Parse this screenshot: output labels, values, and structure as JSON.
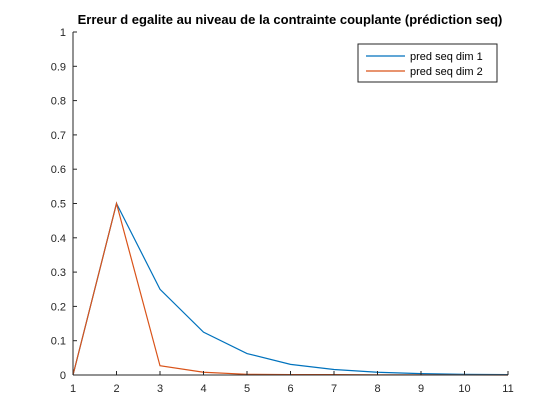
{
  "chart_data": {
    "type": "line",
    "title": "Erreur d egalite au niveau de la contrainte couplante (prédiction seq)",
    "xlabel": "",
    "ylabel": "",
    "xlim": [
      1,
      11
    ],
    "ylim": [
      0,
      1
    ],
    "grid": false,
    "legend_position": "top-right",
    "x": [
      1,
      2,
      3,
      4,
      5,
      6,
      7,
      8,
      9,
      10,
      11
    ],
    "xticks": [
      "1",
      "2",
      "3",
      "4",
      "5",
      "6",
      "7",
      "8",
      "9",
      "10",
      "11"
    ],
    "yticks": [
      "0",
      "0.1",
      "0.2",
      "0.3",
      "0.4",
      "0.5",
      "0.6",
      "0.7",
      "0.8",
      "0.9",
      "1"
    ],
    "series": [
      {
        "name": "pred seq dim 1",
        "color": "#0072bd",
        "values": [
          0,
          0.5,
          0.25,
          0.125,
          0.0625,
          0.031,
          0.016,
          0.008,
          0.004,
          0.002,
          0.001
        ]
      },
      {
        "name": "pred seq dim 2",
        "color": "#d95319",
        "values": [
          0,
          0.5,
          0.027,
          0.008,
          0.002,
          0.001,
          0.001,
          0.0005,
          0.0003,
          0.0002,
          0.0001
        ]
      }
    ]
  }
}
